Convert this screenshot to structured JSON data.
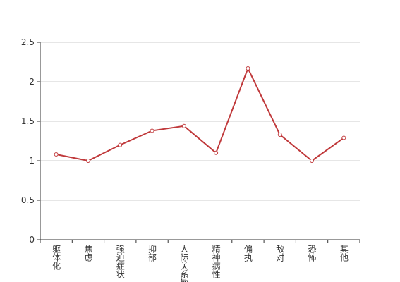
{
  "chart_data": {
    "type": "line",
    "categories": [
      "躯体化",
      "焦虑",
      "强迫症状",
      "抑郁",
      "人际关系敏感",
      "精神病性",
      "偏执",
      "敌对",
      "恐怖",
      "其他"
    ],
    "values": [
      1.08,
      1.0,
      1.2,
      1.38,
      1.44,
      1.1,
      2.17,
      1.33,
      1.0,
      1.29
    ],
    "color": "#c0393b",
    "ylim": [
      0,
      2.5
    ],
    "yticks": [
      0,
      0.5,
      1,
      1.5,
      2,
      2.5
    ],
    "grid": true
  }
}
